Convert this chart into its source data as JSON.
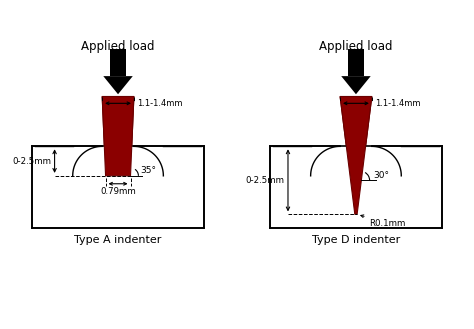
{
  "background_color": "#ffffff",
  "indenter_color": "#8B0000",
  "indenter_edge_color": "#6B0000",
  "text_color": "#000000",
  "title_A": "Type A indenter",
  "title_D": "Type D indenter",
  "label_load": "Applied load",
  "label_width": "1.1-1.4mm",
  "label_depth_A": "0-2.5mm",
  "label_depth_D": "0-2.5mm",
  "label_base_A": "0.79mm",
  "label_angle_A": "35°",
  "label_angle_D": "30°",
  "label_radius_D": "R0.1mm",
  "fig_width": 4.74,
  "fig_height": 3.29,
  "dpi": 100
}
